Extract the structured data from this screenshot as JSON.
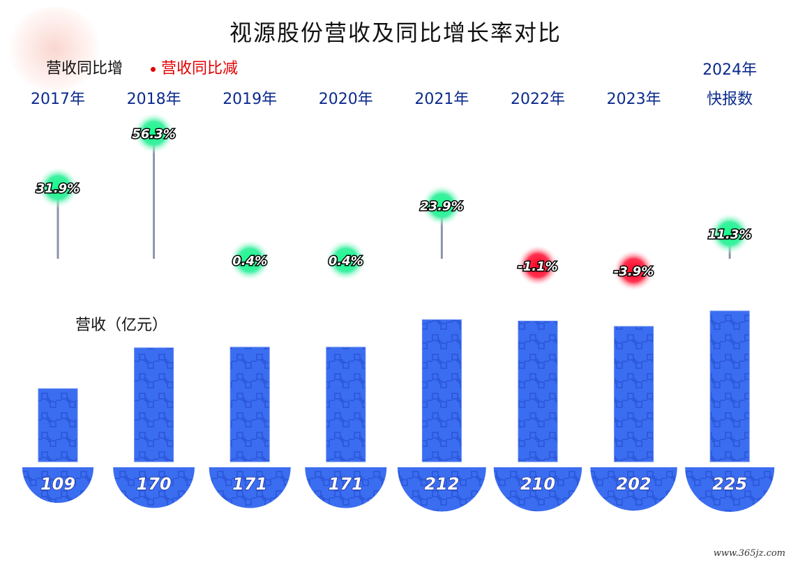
{
  "chart_data": {
    "type": "bar",
    "title": "视源股份营收及同比增长率对比",
    "legend": {
      "increase": "营收同比增",
      "decrease": "营收同比减"
    },
    "ylabel": "营收（亿元）",
    "categories": [
      "2017年",
      "2018年",
      "2019年",
      "2020年",
      "2021年",
      "2022年",
      "2023年",
      "2024年快报数"
    ],
    "category_lines": [
      [
        "2017年"
      ],
      [
        "2018年"
      ],
      [
        "2019年"
      ],
      [
        "2020年"
      ],
      [
        "2021年"
      ],
      [
        "2022年"
      ],
      [
        "2023年"
      ],
      [
        "2024年",
        "快报数"
      ]
    ],
    "series": [
      {
        "name": "营收",
        "values": [
          109,
          170,
          171,
          171,
          212,
          210,
          202,
          225
        ]
      },
      {
        "name": "营收同比",
        "values": [
          31.9,
          56.3,
          0.4,
          0.4,
          23.9,
          -1.1,
          -3.9,
          11.3
        ]
      }
    ],
    "value_labels": [
      "109",
      "170",
      "171",
      "171",
      "212",
      "210",
      "202",
      "225"
    ],
    "growth_labels": [
      "31.9%",
      "56.3%",
      "0.4%",
      "0.4%",
      "23.9%",
      "-1.1%",
      "-3.9%",
      "11.3%"
    ],
    "colors": {
      "bar": "#3b6df0",
      "bar_pattern": "#2a55d8",
      "increase": "#22e08a",
      "decrease": "#ff1030",
      "category_text": "#0b2a8c"
    }
  },
  "watermark": "www.365jz.com"
}
